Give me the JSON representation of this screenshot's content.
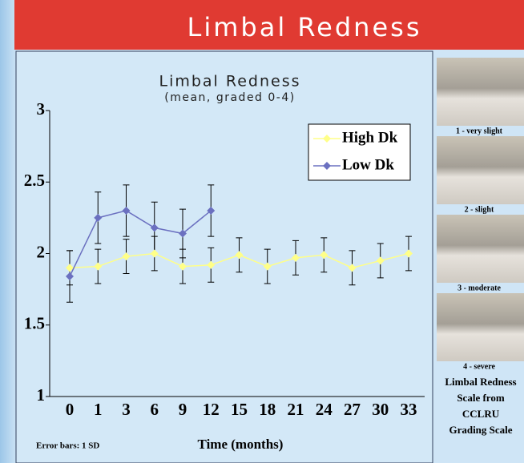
{
  "header": {
    "title": "Limbal Redness"
  },
  "chart_data": {
    "type": "line",
    "title": "Limbal Redness",
    "subtitle": "(mean, graded 0-4)",
    "x_label": "Time (months)",
    "note": "Error bars: 1 SD",
    "categories": [
      "0",
      "1",
      "3",
      "6",
      "9",
      "12",
      "15",
      "18",
      "21",
      "24",
      "27",
      "30",
      "33"
    ],
    "series": [
      {
        "name": "High Dk",
        "color": "#ffff88",
        "values": [
          1.9,
          1.91,
          1.98,
          2.0,
          1.91,
          1.92,
          1.99,
          1.91,
          1.97,
          1.99,
          1.9,
          1.95,
          2.0
        ],
        "errors": [
          0.12,
          0.12,
          0.12,
          0.12,
          0.12,
          0.12,
          0.12,
          0.12,
          0.12,
          0.12,
          0.12,
          0.12,
          0.12
        ]
      },
      {
        "name": "Low Dk",
        "color": "#6b70c0",
        "values": [
          1.84,
          2.25,
          2.3,
          2.18,
          2.14,
          2.3,
          null,
          null,
          null,
          null,
          null,
          null,
          null
        ],
        "errors": [
          0.18,
          0.18,
          0.18,
          0.18,
          0.17,
          0.18,
          null,
          null,
          null,
          null,
          null,
          null,
          null
        ]
      }
    ],
    "ylim": [
      1,
      3
    ],
    "yticks": [
      1,
      1.5,
      2,
      2.5,
      3
    ],
    "legend": "upper right"
  },
  "grading_panel": {
    "images": [
      {
        "label": "1 - very slight"
      },
      {
        "label": "2 - slight"
      },
      {
        "label": "3 - moderate"
      },
      {
        "label": "4 - severe"
      }
    ],
    "caption": [
      "Limbal Redness",
      "Scale from",
      "CCLRU",
      "Grading Scale"
    ]
  }
}
